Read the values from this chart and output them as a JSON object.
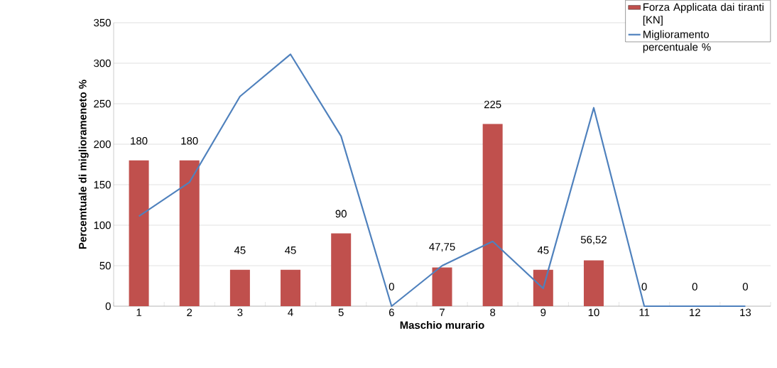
{
  "chart_data": {
    "type": "bar",
    "xlabel": "Maschio murario",
    "ylabel": "Percemtuale di migliorameneto %",
    "categories": [
      "1",
      "2",
      "3",
      "4",
      "5",
      "6",
      "7",
      "8",
      "9",
      "10",
      "11",
      "12",
      "13"
    ],
    "series": [
      {
        "name": "Forza Applicata dai tiranti [KN]",
        "color": "#c0504d",
        "values": [
          180,
          180,
          45,
          45,
          90,
          0,
          47.75,
          225,
          45,
          56.52,
          0,
          0,
          0
        ],
        "value_labels": [
          "180",
          "180",
          "45",
          "45",
          "90",
          "0",
          "47,75",
          "225",
          "45",
          "56,52",
          "0",
          "0",
          "0"
        ]
      },
      {
        "type": "line",
        "name": "Miglioramento percentuale %",
        "color": "#4f81bd",
        "values": [
          111,
          153,
          259,
          311,
          210,
          0,
          50,
          80,
          22,
          245,
          0,
          0,
          0
        ]
      }
    ],
    "ylim": [
      0,
      350
    ],
    "yticks": [
      0,
      50,
      100,
      150,
      200,
      250,
      300,
      350
    ],
    "grid": "y",
    "legend": "top right"
  }
}
